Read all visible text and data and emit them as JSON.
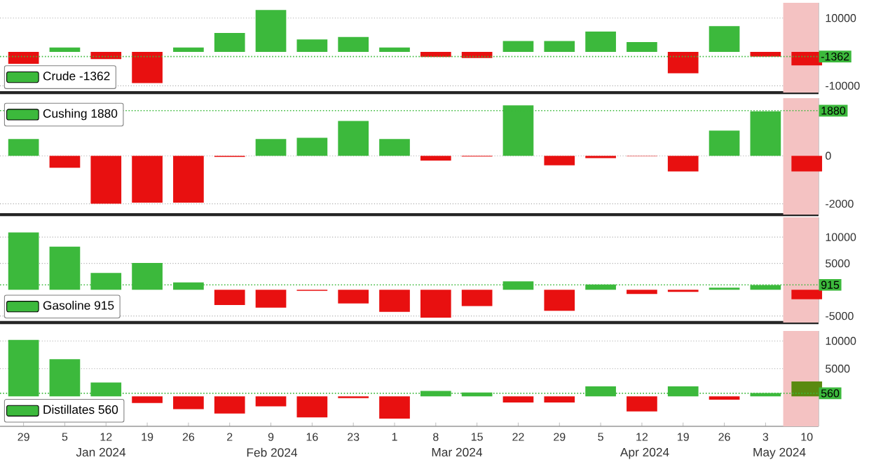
{
  "chart_data": [
    {
      "type": "bar",
      "x": [
        "2023-12-29",
        "2024-01-05",
        "2024-01-12",
        "2024-01-19",
        "2024-01-26",
        "2024-02-02",
        "2024-02-09",
        "2024-02-16",
        "2024-02-23",
        "2024-03-01",
        "2024-03-08",
        "2024-03-15",
        "2024-03-22",
        "2024-03-29",
        "2024-04-05",
        "2024-04-12",
        "2024-04-19",
        "2024-04-26",
        "2024-05-03",
        "2024-05-10"
      ],
      "series": [
        {
          "name": "Crude  -1362",
          "color": "#3cb93c",
          "colors": [
            "#e81010",
            "#3cb93c",
            "#e81010",
            "#e81010",
            "#3cb93c",
            "#3cb93c",
            "#3cb93c",
            "#3cb93c",
            "#3cb93c",
            "#3cb93c",
            "#e81010",
            "#e81010",
            "#3cb93c",
            "#3cb93c",
            "#3cb93c",
            "#3cb93c",
            "#e81010",
            "#3cb93c",
            "#e81010",
            "#e81010"
          ],
          "values": [
            -3500,
            1300,
            -2100,
            -9200,
            1300,
            5600,
            12400,
            3700,
            4400,
            1300,
            -1500,
            -1800,
            3200,
            3200,
            6000,
            2900,
            -6300,
            7600,
            -1400,
            -4000
          ]
        }
      ],
      "xlim": [
        "2023-12-25",
        "2024-05-12"
      ],
      "ylim": [
        -12000,
        14500
      ],
      "xticks": [
        {
          "value": "2023-12-29",
          "label": null
        },
        {
          "value": "2024-01-05",
          "label": null
        },
        {
          "value": "2024-01-12",
          "label": null
        },
        {
          "value": "2024-01-19",
          "label": null
        },
        {
          "value": "2024-01-26",
          "label": null
        },
        {
          "value": "2024-02-02",
          "label": null
        },
        {
          "value": "2024-02-09",
          "label": null
        },
        {
          "value": "2024-02-16",
          "label": null
        },
        {
          "value": "2024-02-23",
          "label": null
        },
        {
          "value": "2024-03-01",
          "label": null
        },
        {
          "value": "2024-03-08",
          "label": null
        },
        {
          "value": "2024-03-15",
          "label": null
        },
        {
          "value": "2024-03-22",
          "label": null
        },
        {
          "value": "2024-03-29",
          "label": null
        },
        {
          "value": "2024-04-05",
          "label": null
        },
        {
          "value": "2024-04-12",
          "label": null
        },
        {
          "value": "2024-04-19",
          "label": null
        },
        {
          "value": "2024-04-26",
          "label": null
        },
        {
          "value": "2024-05-03",
          "label": null
        },
        {
          "value": "2024-05-10",
          "label": null
        }
      ],
      "yticks": [
        -10000,
        10000
      ],
      "ref_lines": [
        {
          "axis": "y",
          "value": -1362,
          "label": "-1362",
          "color": "#3cb93c",
          "line_style": "dotted"
        }
      ],
      "bands": [
        {
          "axis": "x",
          "from": "2024-05-06",
          "to": "2024-05-12",
          "color": "#f4c2c2"
        }
      ],
      "grid": "y",
      "legend": "bottom left",
      "tick_labels": "y"
    },
    {
      "type": "bar",
      "x": [
        "2023-12-29",
        "2024-01-05",
        "2024-01-12",
        "2024-01-19",
        "2024-01-26",
        "2024-02-02",
        "2024-02-09",
        "2024-02-16",
        "2024-02-23",
        "2024-03-01",
        "2024-03-08",
        "2024-03-15",
        "2024-03-22",
        "2024-03-29",
        "2024-04-05",
        "2024-04-12",
        "2024-04-19",
        "2024-04-26",
        "2024-05-03",
        "2024-05-10"
      ],
      "series": [
        {
          "name": "Cushing  1880",
          "color": "#3cb93c",
          "colors": [
            "#3cb93c",
            "#e81010",
            "#e81010",
            "#e81010",
            "#e81010",
            "#e81010",
            "#3cb93c",
            "#3cb93c",
            "#3cb93c",
            "#3cb93c",
            "#e81010",
            "#e81010",
            "#3cb93c",
            "#e81010",
            "#e81010",
            "#e81010",
            "#e81010",
            "#3cb93c",
            "#3cb93c",
            "#e81010"
          ],
          "values": [
            700,
            -500,
            -2000,
            -1950,
            -1950,
            -50,
            700,
            750,
            1450,
            700,
            -200,
            -30,
            2100,
            -400,
            -100,
            -20,
            -650,
            1050,
            1850,
            -650
          ]
        }
      ],
      "xlim": [
        "2023-12-25",
        "2024-05-12"
      ],
      "ylim": [
        -2450,
        2400
      ],
      "xticks": [
        {
          "value": "2023-12-29",
          "label": null
        },
        {
          "value": "2024-01-05",
          "label": null
        },
        {
          "value": "2024-01-12",
          "label": null
        },
        {
          "value": "2024-01-19",
          "label": null
        },
        {
          "value": "2024-01-26",
          "label": null
        },
        {
          "value": "2024-02-02",
          "label": null
        },
        {
          "value": "2024-02-09",
          "label": null
        },
        {
          "value": "2024-02-16",
          "label": null
        },
        {
          "value": "2024-02-23",
          "label": null
        },
        {
          "value": "2024-03-01",
          "label": null
        },
        {
          "value": "2024-03-08",
          "label": null
        },
        {
          "value": "2024-03-15",
          "label": null
        },
        {
          "value": "2024-03-22",
          "label": null
        },
        {
          "value": "2024-03-29",
          "label": null
        },
        {
          "value": "2024-04-05",
          "label": null
        },
        {
          "value": "2024-04-12",
          "label": null
        },
        {
          "value": "2024-04-19",
          "label": null
        },
        {
          "value": "2024-04-26",
          "label": null
        },
        {
          "value": "2024-05-03",
          "label": null
        },
        {
          "value": "2024-05-10",
          "label": null
        }
      ],
      "yticks": [
        -2000,
        0
      ],
      "ref_lines": [
        {
          "axis": "y",
          "value": 1880,
          "label": "1880",
          "color": "#3cb93c",
          "line_style": "dotted"
        }
      ],
      "bands": [
        {
          "axis": "x",
          "from": "2024-05-06",
          "to": "2024-05-12",
          "color": "#f4c2c2"
        }
      ],
      "grid": "y",
      "legend": "top left",
      "tick_labels": "y"
    },
    {
      "type": "bar",
      "x": [
        "2023-12-29",
        "2024-01-05",
        "2024-01-12",
        "2024-01-19",
        "2024-01-26",
        "2024-02-02",
        "2024-02-09",
        "2024-02-16",
        "2024-02-23",
        "2024-03-01",
        "2024-03-08",
        "2024-03-15",
        "2024-03-22",
        "2024-03-29",
        "2024-04-05",
        "2024-04-12",
        "2024-04-19",
        "2024-04-26",
        "2024-05-03",
        "2024-05-10"
      ],
      "series": [
        {
          "name": "Gasoline  915",
          "color": "#3cb93c",
          "colors": [
            "#3cb93c",
            "#3cb93c",
            "#3cb93c",
            "#3cb93c",
            "#3cb93c",
            "#e81010",
            "#e81010",
            "#e81010",
            "#e81010",
            "#e81010",
            "#e81010",
            "#e81010",
            "#3cb93c",
            "#e81010",
            "#3cb93c",
            "#e81010",
            "#e81010",
            "#3cb93c",
            "#3cb93c",
            "#e81010"
          ],
          "values": [
            10900,
            8200,
            3200,
            5100,
            1400,
            -2900,
            -3400,
            -200,
            -2600,
            -4200,
            -5300,
            -3100,
            1600,
            -4000,
            1000,
            -800,
            -400,
            400,
            900,
            -1800
          ]
        }
      ],
      "xlim": [
        "2023-12-25",
        "2024-05-12"
      ],
      "ylim": [
        -6250,
        13750
      ],
      "xticks": [
        {
          "value": "2023-12-29",
          "label": null
        },
        {
          "value": "2024-01-05",
          "label": null
        },
        {
          "value": "2024-01-12",
          "label": null
        },
        {
          "value": "2024-01-19",
          "label": null
        },
        {
          "value": "2024-01-26",
          "label": null
        },
        {
          "value": "2024-02-02",
          "label": null
        },
        {
          "value": "2024-02-09",
          "label": null
        },
        {
          "value": "2024-02-16",
          "label": null
        },
        {
          "value": "2024-02-23",
          "label": null
        },
        {
          "value": "2024-03-01",
          "label": null
        },
        {
          "value": "2024-03-08",
          "label": null
        },
        {
          "value": "2024-03-15",
          "label": null
        },
        {
          "value": "2024-03-22",
          "label": null
        },
        {
          "value": "2024-03-29",
          "label": null
        },
        {
          "value": "2024-04-05",
          "label": null
        },
        {
          "value": "2024-04-12",
          "label": null
        },
        {
          "value": "2024-04-19",
          "label": null
        },
        {
          "value": "2024-04-26",
          "label": null
        },
        {
          "value": "2024-05-03",
          "label": null
        },
        {
          "value": "2024-05-10",
          "label": null
        }
      ],
      "yticks": [
        -5000,
        5000,
        10000
      ],
      "ref_lines": [
        {
          "axis": "y",
          "value": 915,
          "label": "915",
          "color": "#3cb93c",
          "line_style": "dotted"
        }
      ],
      "bands": [
        {
          "axis": "x",
          "from": "2024-05-06",
          "to": "2024-05-12",
          "color": "#f4c2c2"
        }
      ],
      "grid": "y",
      "legend": "bottom left",
      "tick_labels": "y"
    },
    {
      "type": "bar",
      "x": [
        "2023-12-29",
        "2024-01-05",
        "2024-01-12",
        "2024-01-19",
        "2024-01-26",
        "2024-02-02",
        "2024-02-09",
        "2024-02-16",
        "2024-02-23",
        "2024-03-01",
        "2024-03-08",
        "2024-03-15",
        "2024-03-22",
        "2024-03-29",
        "2024-04-05",
        "2024-04-12",
        "2024-04-19",
        "2024-04-26",
        "2024-05-03",
        "2024-05-10"
      ],
      "series": [
        {
          "name": "Distillates  560",
          "color": "#3cb93c",
          "colors": [
            "#3cb93c",
            "#3cb93c",
            "#3cb93c",
            "#e81010",
            "#e81010",
            "#e81010",
            "#e81010",
            "#e81010",
            "#e81010",
            "#e81010",
            "#3cb93c",
            "#3cb93c",
            "#e81010",
            "#e81010",
            "#3cb93c",
            "#e81010",
            "#3cb93c",
            "#e81010",
            "#3cb93c",
            "#5a8a10"
          ],
          "values": [
            10200,
            6700,
            2500,
            -1200,
            -2300,
            -3100,
            -1800,
            -3800,
            -300,
            -4000,
            1000,
            700,
            -1100,
            -1100,
            1800,
            -2700,
            1800,
            -600,
            600,
            2700
          ]
        }
      ],
      "xlim": [
        "2023-12-25",
        "2024-05-12"
      ],
      "ylim": [
        -5400,
        11800
      ],
      "xticks": [
        {
          "value": "2023-12-29",
          "label": "29"
        },
        {
          "value": "2024-01-05",
          "label": "5"
        },
        {
          "value": "2024-01-12",
          "label": "12"
        },
        {
          "value": "2024-01-19",
          "label": "19"
        },
        {
          "value": "2024-01-26",
          "label": "26"
        },
        {
          "value": "2024-02-02",
          "label": "2"
        },
        {
          "value": "2024-02-09",
          "label": "9"
        },
        {
          "value": "2024-02-16",
          "label": "16"
        },
        {
          "value": "2024-02-23",
          "label": "23"
        },
        {
          "value": "2024-03-01",
          "label": "1"
        },
        {
          "value": "2024-03-08",
          "label": "8"
        },
        {
          "value": "2024-03-15",
          "label": "15"
        },
        {
          "value": "2024-03-22",
          "label": "22"
        },
        {
          "value": "2024-03-29",
          "label": "29"
        },
        {
          "value": "2024-04-05",
          "label": "5"
        },
        {
          "value": "2024-04-12",
          "label": "12"
        },
        {
          "value": "2024-04-19",
          "label": "19"
        },
        {
          "value": "2024-04-26",
          "label": "26"
        },
        {
          "value": "2024-05-03",
          "label": "3"
        },
        {
          "value": "2024-05-10",
          "label": "10"
        }
      ],
      "yticks": [
        5000,
        10000
      ],
      "ref_lines": [
        {
          "axis": "y",
          "value": 560,
          "label": "560",
          "color": "#3cb93c",
          "line_style": "dotted"
        }
      ],
      "bands": [
        {
          "axis": "x",
          "from": "2024-05-06",
          "to": "2024-05-12",
          "color": "#f4c2c2"
        }
      ],
      "annotations": [
        "Jan 2024",
        "Feb 2024",
        "Mar 2024",
        "Apr 2024",
        "May 2024"
      ],
      "grid": "y",
      "legend": "bottom left"
    }
  ]
}
